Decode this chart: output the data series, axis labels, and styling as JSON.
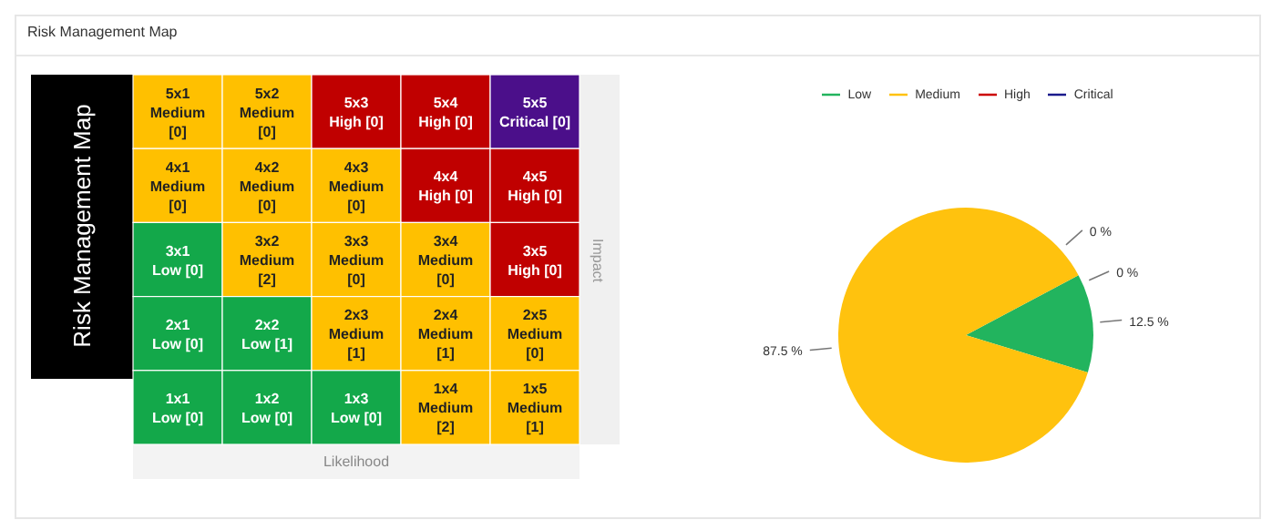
{
  "chart_data": [
    {
      "type": "other",
      "title": "Risk Management Map",
      "ylabel": "Risk Management Map",
      "y2label": "Impact",
      "xlabel": "Likelihood",
      "annotations": [
        "5x1\nMedium\n[0]",
        "5x2\nMedium\n[0]",
        "5x3\nHigh [0]",
        "5x4\nHigh [0]",
        "5x5\nCritical [0]",
        "4x1\nMedium\n[0]",
        "4x2\nMedium\n[0]",
        "4x3\nMedium\n[0]",
        "4x4\nHigh [0]",
        "4x5\nHigh [0]",
        "3x1\nLow [0]",
        "3x2\nMedium\n[2]",
        "3x3\nMedium\n[0]",
        "3x4\nMedium\n[0]",
        "3x5\nHigh [0]",
        "2x1\nLow [0]",
        "2x2\nLow [1]",
        "2x3\nMedium\n[1]",
        "2x4\nMedium\n[1]",
        "2x5\nMedium\n[0]",
        "1x1\nLow [0]",
        "1x2\nLow [0]",
        "1x3\nLow [0]",
        "1x4\nMedium\n[2]",
        "1x5\nMedium\n[1]"
      ],
      "colors": [
        "#ffc000",
        "#ffc000",
        "#c00000",
        "#c00000",
        "#4b0f8a",
        "#ffc000",
        "#ffc000",
        "#ffc000",
        "#c00000",
        "#c00000",
        "#13a84a",
        "#ffc000",
        "#ffc000",
        "#ffc000",
        "#c00000",
        "#13a84a",
        "#13a84a",
        "#ffc000",
        "#ffc000",
        "#ffc000",
        "#13a84a",
        "#13a84a",
        "#13a84a",
        "#ffc000",
        "#ffc000"
      ]
    },
    {
      "type": "pie",
      "categories": [
        "Low",
        "Medium",
        "High",
        "Critical"
      ],
      "values": [
        12.5,
        87.5,
        0,
        0
      ],
      "colors": [
        "#22b45e",
        "#ffc20e",
        "#cc0000",
        "#1a1a8c"
      ],
      "value_labels": [
        "12.5 %",
        "87.5 %",
        "0 %",
        "0 %"
      ],
      "legend": "top"
    }
  ]
}
